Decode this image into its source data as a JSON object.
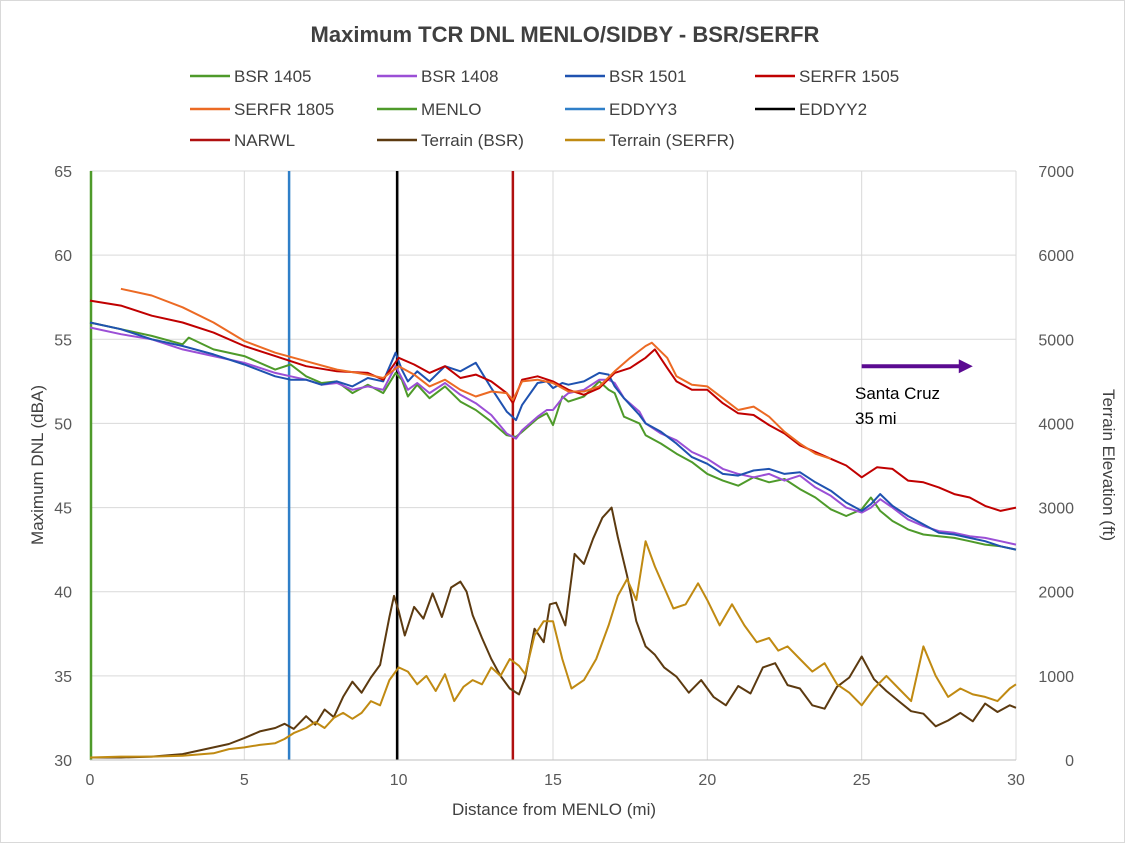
{
  "chart_data": {
    "type": "line",
    "title": "Maximum TCR DNL MENLO/SIDBY - BSR/SERFR",
    "xlabel": "Distance from MENLO (mi)",
    "ylabel": "Maximum DNL (dBA)",
    "y2label": "Terrain Elevation (ft)",
    "xlim": [
      0,
      30
    ],
    "ylim": [
      30,
      65
    ],
    "y2lim": [
      0,
      7000
    ],
    "xticks": [
      0,
      5,
      10,
      15,
      20,
      25,
      30
    ],
    "yticks": [
      30,
      35,
      40,
      45,
      50,
      55,
      60,
      65
    ],
    "y2ticks": [
      0,
      1000,
      2000,
      3000,
      4000,
      5000,
      6000,
      7000
    ],
    "grid": true,
    "legend_position": "top",
    "annotation": {
      "lines": [
        "Santa Cruz",
        "35 mi"
      ],
      "arrow": "right",
      "x": 25,
      "y": 52.3,
      "arrow_x_end": 28.6,
      "arrow_y": 53.4,
      "arrow_color": "#5B0A91"
    },
    "legend": [
      {
        "name": "BSR 1405",
        "color": "#4E9A2A"
      },
      {
        "name": "BSR 1408",
        "color": "#9B4FD6"
      },
      {
        "name": "BSR 1501",
        "color": "#1F52B0"
      },
      {
        "name": "SERFR 1505",
        "color": "#C00000"
      },
      {
        "name": "SERFR 1805",
        "color": "#EC6A24"
      },
      {
        "name": "MENLO",
        "color": "#4E9A2A"
      },
      {
        "name": "EDDYY3",
        "color": "#2F7FC8"
      },
      {
        "name": "EDDYY2",
        "color": "#000000"
      },
      {
        "name": "NARWL",
        "color": "#B01010"
      },
      {
        "name": "Terrain (BSR)",
        "color": "#5C3A10"
      },
      {
        "name": "Terrain (SERFR)",
        "color": "#C08A12"
      }
    ],
    "vertical_markers": [
      {
        "name": "MENLO",
        "x": 0.0,
        "color": "#4E9A2A"
      },
      {
        "name": "EDDYY3",
        "x": 6.45,
        "color": "#2F7FC8"
      },
      {
        "name": "EDDYY2",
        "x": 9.95,
        "color": "#000000"
      },
      {
        "name": "NARWL",
        "x": 13.7,
        "color": "#B01010"
      }
    ],
    "series": [
      {
        "name": "BSR 1405",
        "axis": "left",
        "color": "#4E9A2A",
        "x": [
          0,
          1,
          2,
          3,
          3.2,
          4,
          5,
          6,
          6.5,
          7,
          7.5,
          8,
          8.5,
          9,
          9.5,
          9.9,
          10.1,
          10.3,
          10.6,
          11,
          11.5,
          12,
          12.5,
          13,
          13.5,
          13.8,
          14,
          14.5,
          14.8,
          15,
          15.3,
          15.5,
          16,
          16.5,
          16.8,
          17,
          17.3,
          17.8,
          18,
          18.5,
          19,
          19.5,
          20,
          20.5,
          21,
          21.5,
          22,
          22.5,
          23,
          23.5,
          24,
          24.5,
          25,
          25.3,
          25.6,
          26,
          26.5,
          27,
          27.5,
          28,
          28.5,
          29,
          29.5,
          30
        ],
        "y": [
          56.0,
          55.6,
          55.2,
          54.7,
          55.1,
          54.4,
          54.0,
          53.2,
          53.5,
          52.8,
          52.4,
          52.5,
          51.8,
          52.3,
          51.8,
          53.0,
          52.6,
          51.6,
          52.3,
          51.5,
          52.2,
          51.3,
          50.8,
          50.1,
          49.3,
          49.2,
          49.5,
          50.3,
          50.6,
          49.9,
          51.6,
          51.3,
          51.6,
          52.5,
          52.0,
          51.8,
          50.4,
          50.0,
          49.3,
          48.8,
          48.2,
          47.7,
          47.0,
          46.6,
          46.3,
          46.8,
          46.5,
          46.7,
          46.1,
          45.6,
          44.9,
          44.5,
          44.9,
          45.6,
          44.8,
          44.2,
          43.7,
          43.4,
          43.3,
          43.2,
          43.0,
          42.8,
          42.7,
          42.5
        ]
      },
      {
        "name": "BSR 1408",
        "axis": "left",
        "color": "#9B4FD6",
        "x": [
          0,
          1,
          2,
          3,
          4,
          5,
          6,
          6.5,
          7,
          7.5,
          8,
          8.5,
          9,
          9.5,
          9.9,
          10.1,
          10.3,
          10.6,
          11,
          11.5,
          12,
          12.5,
          13,
          13.5,
          13.8,
          14,
          14.5,
          14.8,
          15,
          15.3,
          15.5,
          16,
          16.5,
          16.8,
          17,
          17.3,
          17.8,
          18,
          18.5,
          19,
          19.5,
          20,
          20.5,
          21,
          21.5,
          22,
          22.5,
          23,
          23.5,
          24,
          24.5,
          25,
          25.3,
          25.6,
          26,
          26.5,
          27,
          27.5,
          28,
          28.5,
          29,
          29.5,
          30
        ],
        "y": [
          55.7,
          55.3,
          55.0,
          54.4,
          54.0,
          53.6,
          53.0,
          52.8,
          52.6,
          52.3,
          52.4,
          52.0,
          52.2,
          52.0,
          53.4,
          52.7,
          52.0,
          52.4,
          51.8,
          52.4,
          51.7,
          51.2,
          50.5,
          49.4,
          49.1,
          49.6,
          50.4,
          50.8,
          50.8,
          51.5,
          51.8,
          52.0,
          52.6,
          52.6,
          52.4,
          51.5,
          50.7,
          50.0,
          49.4,
          49.0,
          48.3,
          47.9,
          47.3,
          47.0,
          46.8,
          47.0,
          46.6,
          46.9,
          46.2,
          45.7,
          45.0,
          44.7,
          45.0,
          45.5,
          45.0,
          44.3,
          43.9,
          43.6,
          43.5,
          43.3,
          43.2,
          43.0,
          42.8
        ]
      },
      {
        "name": "BSR 1501",
        "axis": "left",
        "color": "#1F52B0",
        "x": [
          0,
          1,
          2,
          3,
          4,
          5,
          6,
          6.5,
          7,
          7.5,
          8,
          8.5,
          9,
          9.5,
          9.9,
          10.1,
          10.3,
          10.6,
          11,
          11.5,
          12,
          12.5,
          13,
          13.5,
          13.8,
          14,
          14.5,
          14.8,
          15,
          15.3,
          15.5,
          16,
          16.5,
          16.8,
          17,
          17.3,
          17.8,
          18,
          18.5,
          19,
          19.5,
          20,
          20.5,
          21,
          21.5,
          22,
          22.5,
          23,
          23.5,
          24,
          24.5,
          25,
          25.3,
          25.6,
          26,
          26.5,
          27,
          27.5,
          28,
          28.5,
          29,
          29.5,
          30
        ],
        "y": [
          56.0,
          55.6,
          55.0,
          54.6,
          54.1,
          53.5,
          52.8,
          52.6,
          52.6,
          52.3,
          52.5,
          52.2,
          52.7,
          52.5,
          54.2,
          53.2,
          52.5,
          53.1,
          52.5,
          53.4,
          53.1,
          53.6,
          52.1,
          50.7,
          50.2,
          51.1,
          52.4,
          52.5,
          52.1,
          52.4,
          52.3,
          52.5,
          53.0,
          52.9,
          52.2,
          51.5,
          50.5,
          50.0,
          49.5,
          48.8,
          48.0,
          47.6,
          47.0,
          46.9,
          47.2,
          47.3,
          47.0,
          47.1,
          46.5,
          46.0,
          45.3,
          44.8,
          45.2,
          45.8,
          45.1,
          44.5,
          44.0,
          43.5,
          43.4,
          43.2,
          43.0,
          42.7,
          42.5
        ]
      },
      {
        "name": "SERFR 1505",
        "axis": "left",
        "color": "#C00000",
        "x": [
          0,
          1,
          2,
          3,
          4,
          5,
          6,
          7,
          8,
          9,
          9.5,
          10,
          10.5,
          11,
          11.5,
          12,
          12.5,
          13,
          13.5,
          13.7,
          14,
          14.5,
          15,
          15.5,
          16,
          16.5,
          17,
          17.5,
          18,
          18.3,
          18.7,
          19,
          19.5,
          20,
          20.5,
          21,
          21.5,
          22,
          22.5,
          23,
          23.5,
          24,
          24.5,
          25,
          25.5,
          26,
          26.5,
          27,
          27.5,
          28,
          28.5,
          29,
          29.5,
          30
        ],
        "y": [
          57.3,
          57.0,
          56.4,
          56.0,
          55.4,
          54.6,
          54.0,
          53.4,
          53.1,
          53.0,
          52.6,
          53.9,
          53.5,
          53.0,
          53.4,
          52.7,
          52.9,
          52.5,
          51.8,
          51.2,
          52.6,
          52.8,
          52.5,
          52.0,
          51.7,
          52.1,
          53.0,
          53.3,
          53.9,
          54.4,
          53.3,
          52.5,
          52.0,
          52.0,
          51.2,
          50.6,
          50.5,
          49.9,
          49.4,
          48.7,
          48.3,
          47.9,
          47.5,
          46.8,
          47.4,
          47.3,
          46.6,
          46.5,
          46.2,
          45.8,
          45.6,
          45.1,
          44.8,
          45.0
        ]
      },
      {
        "name": "SERFR 1805",
        "axis": "left",
        "color": "#EC6A24",
        "x": [
          1,
          2,
          3,
          4,
          5,
          6,
          7,
          8,
          9,
          9.5,
          10,
          10.5,
          11,
          11.5,
          12,
          12.5,
          13,
          13.5,
          13.7,
          14,
          14.5,
          15,
          15.5,
          16,
          16.5,
          17,
          17.5,
          18,
          18.2,
          18.7,
          19,
          19.5,
          20,
          20.5,
          21,
          21.5,
          22,
          22.5,
          23,
          23.5,
          24
        ],
        "y": [
          58.0,
          57.6,
          56.9,
          56.0,
          54.9,
          54.2,
          53.7,
          53.2,
          52.9,
          52.7,
          53.4,
          52.9,
          52.2,
          52.6,
          52.0,
          51.6,
          51.9,
          51.8,
          51.4,
          52.5,
          52.6,
          52.4,
          51.9,
          51.9,
          52.2,
          53.1,
          53.9,
          54.6,
          54.8,
          53.9,
          52.8,
          52.3,
          52.2,
          51.5,
          50.8,
          51.0,
          50.4,
          49.5,
          48.8,
          48.2,
          47.9
        ]
      },
      {
        "name": "Terrain (BSR)",
        "axis": "right",
        "color": "#5C3A10",
        "x": [
          0,
          1,
          2,
          3,
          4,
          4.5,
          5,
          5.5,
          6,
          6.3,
          6.6,
          7,
          7.3,
          7.6,
          7.9,
          8.2,
          8.5,
          8.8,
          9.1,
          9.4,
          9.7,
          9.85,
          10,
          10.2,
          10.5,
          10.8,
          11.1,
          11.4,
          11.7,
          12,
          12.2,
          12.4,
          12.7,
          13,
          13.3,
          13.6,
          13.9,
          14.1,
          14.4,
          14.7,
          14.9,
          15.1,
          15.4,
          15.7,
          16,
          16.3,
          16.6,
          16.9,
          17.1,
          17.4,
          17.7,
          18,
          18.3,
          18.6,
          19,
          19.4,
          19.8,
          20.2,
          20.6,
          21,
          21.4,
          21.8,
          22.2,
          22.6,
          23,
          23.4,
          23.8,
          24.2,
          24.6,
          25,
          25.4,
          25.8,
          26.2,
          26.6,
          27,
          27.4,
          27.8,
          28.2,
          28.6,
          29,
          29.4,
          29.8,
          30
        ],
        "y": [
          30,
          30,
          40,
          70,
          150,
          190,
          260,
          340,
          380,
          430,
          370,
          520,
          420,
          600,
          510,
          750,
          930,
          800,
          980,
          1130,
          1700,
          1950,
          1770,
          1480,
          1820,
          1680,
          1980,
          1700,
          2050,
          2120,
          2000,
          1720,
          1450,
          1200,
          1000,
          850,
          780,
          980,
          1560,
          1400,
          1850,
          1870,
          1600,
          2450,
          2330,
          2630,
          2880,
          3000,
          2650,
          2190,
          1650,
          1350,
          1250,
          1100,
          990,
          800,
          950,
          750,
          650,
          880,
          790,
          1100,
          1150,
          890,
          850,
          650,
          610,
          870,
          980,
          1230,
          960,
          820,
          700,
          580,
          550,
          400,
          470,
          560,
          460,
          670,
          570,
          650,
          620
        ]
      },
      {
        "name": "Terrain (SERFR)",
        "axis": "right",
        "color": "#C08A12",
        "x": [
          0,
          1,
          2,
          3,
          4,
          4.5,
          5,
          5.5,
          6,
          6.3,
          6.6,
          7,
          7.3,
          7.6,
          7.9,
          8.2,
          8.5,
          8.8,
          9.1,
          9.4,
          9.7,
          10,
          10.3,
          10.6,
          10.9,
          11.2,
          11.5,
          11.8,
          12.1,
          12.4,
          12.7,
          13,
          13.3,
          13.6,
          13.9,
          14.1,
          14.4,
          14.7,
          15,
          15.3,
          15.6,
          16,
          16.4,
          16.8,
          17.1,
          17.4,
          17.7,
          18,
          18.3,
          18.6,
          18.9,
          19.3,
          19.7,
          20,
          20.4,
          20.8,
          21.2,
          21.6,
          22,
          22.3,
          22.6,
          23,
          23.4,
          23.8,
          24.2,
          24.6,
          25,
          25.4,
          25.8,
          26.2,
          26.6,
          27,
          27.4,
          27.8,
          28.2,
          28.6,
          29,
          29.4,
          29.8,
          30
        ],
        "y": [
          30,
          40,
          40,
          50,
          80,
          130,
          150,
          180,
          200,
          250,
          320,
          380,
          450,
          380,
          500,
          560,
          490,
          560,
          700,
          650,
          950,
          1100,
          1050,
          900,
          1000,
          820,
          1020,
          700,
          870,
          950,
          900,
          1100,
          1000,
          1200,
          1120,
          1020,
          1480,
          1650,
          1650,
          1200,
          850,
          950,
          1200,
          1600,
          1950,
          2150,
          1900,
          2600,
          2300,
          2050,
          1800,
          1850,
          2100,
          1900,
          1600,
          1850,
          1600,
          1400,
          1450,
          1300,
          1350,
          1200,
          1050,
          1150,
          900,
          800,
          650,
          850,
          1000,
          850,
          700,
          1350,
          1000,
          750,
          850,
          780,
          750,
          700,
          850,
          900
        ]
      }
    ]
  }
}
